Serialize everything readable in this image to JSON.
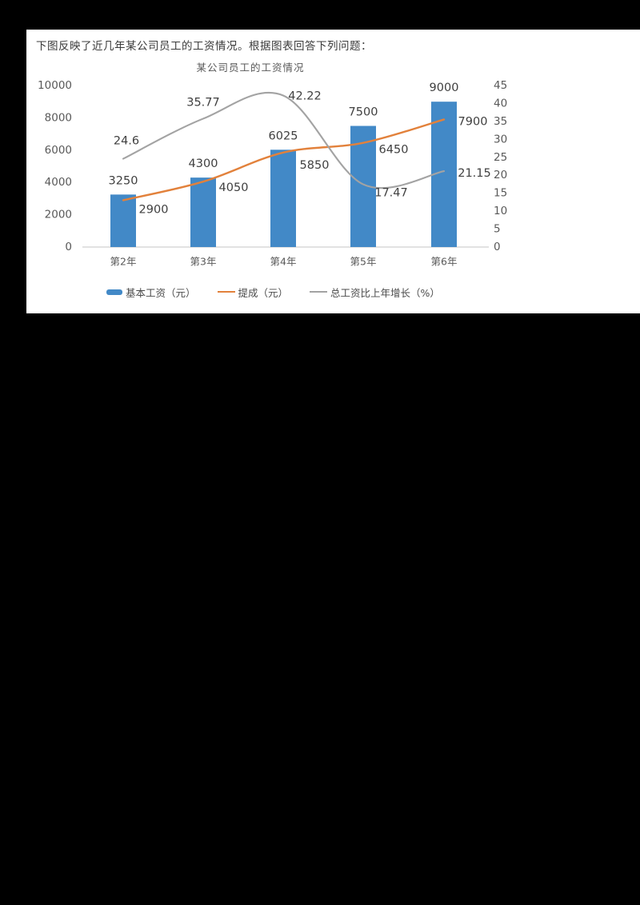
{
  "page": {
    "background": "#000000",
    "panel_background": "#ffffff"
  },
  "header": {
    "text": "下图反映了近几年某公司员工的工资情况。根据图表回答下列问题："
  },
  "chart_data": {
    "type": "bar",
    "subtype": "combo-bar-line-dual-axis",
    "title": "某公司员工的工资情况",
    "categories": [
      "第2年",
      "第3年",
      "第4年",
      "第5年",
      "第6年"
    ],
    "series": [
      {
        "name": "基本工资（元）",
        "type": "bar",
        "axis": "left",
        "color": "#4289c7",
        "values": [
          3250,
          4300,
          6025,
          7500,
          9000
        ]
      },
      {
        "name": "提成（元）",
        "type": "line",
        "axis": "left",
        "color": "#e2813b",
        "values": [
          2900,
          4050,
          5850,
          6450,
          7900
        ]
      },
      {
        "name": "总工资比上年增长（%）",
        "type": "line",
        "axis": "right",
        "color": "#a3a3a3",
        "values": [
          24.6,
          35.77,
          42.22,
          17.47,
          21.15
        ]
      }
    ],
    "left_axis": {
      "min": 0,
      "max": 10000,
      "step": 2000,
      "ticks": [
        "0",
        "2000",
        "4000",
        "6000",
        "8000",
        "10000"
      ]
    },
    "right_axis": {
      "min": 0,
      "max": 45,
      "step": 5,
      "ticks": [
        "0",
        "5",
        "10",
        "15",
        "20",
        "25",
        "30",
        "35",
        "40",
        "45"
      ]
    },
    "grid": false,
    "legend_position": "bottom",
    "colors": {
      "data_label": "#404040",
      "axis_label": "#595959",
      "baseline": "#d9d9d9"
    }
  }
}
